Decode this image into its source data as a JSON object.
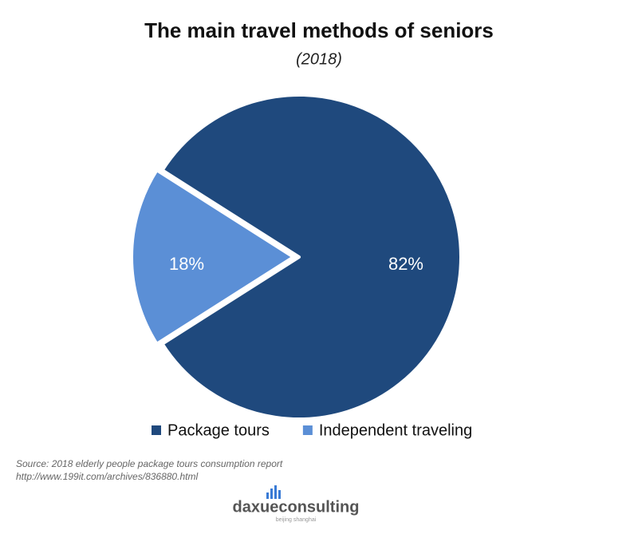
{
  "chart_data": {
    "type": "pie",
    "title": "The main travel methods of seniors",
    "subtitle": "(2018)",
    "categories": [
      "Package tours",
      "Independent traveling"
    ],
    "values": [
      82,
      18
    ],
    "value_labels": [
      "82%",
      "18%"
    ],
    "colors": [
      "#1f497d",
      "#5b8fd6"
    ],
    "legend": "bottom",
    "source": "Source: 2018 elderly people package tours consumption report http://www.199it.com/archives/836880.html",
    "logo": "daxueconsulting",
    "logo_tagline": "beijing shanghai"
  }
}
